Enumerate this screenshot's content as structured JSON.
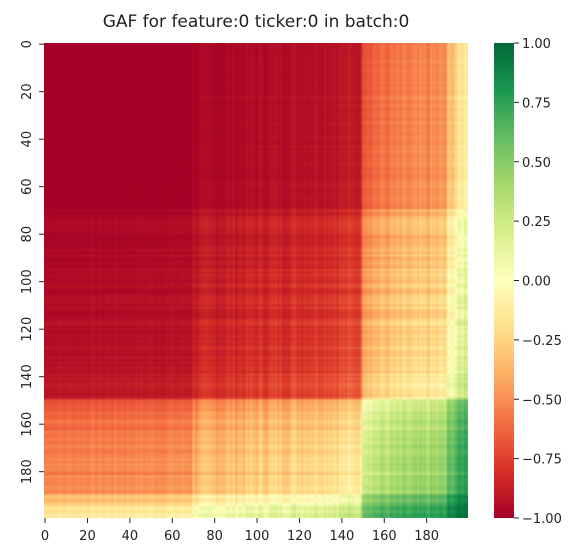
{
  "chart_data": {
    "type": "heatmap",
    "title": "GAF for feature:0 ticker:0 in batch:0",
    "xlabel": "",
    "ylabel": "",
    "size": 200,
    "x_ticks": [
      0,
      20,
      40,
      60,
      80,
      100,
      120,
      140,
      160,
      180
    ],
    "y_ticks": [
      0,
      20,
      40,
      60,
      80,
      100,
      120,
      140,
      160,
      180
    ],
    "colormap": "RdYlGn",
    "vmin": -1.0,
    "vmax": 1.0,
    "colorbar_ticks": [
      "1.00",
      "0.75",
      "0.50",
      "0.25",
      "0.00",
      "−0.25",
      "−0.50",
      "−0.75",
      "−1.00"
    ],
    "colorbar_tick_values": [
      1.0,
      0.75,
      0.5,
      0.25,
      0.0,
      -0.25,
      -0.5,
      -0.75,
      -1.0
    ],
    "colors": {
      "low": "#a50026",
      "mid": "#ffffbf",
      "high": "#006837"
    },
    "cell_pattern": "symmetric Gramian angular field: each cell encodes cos of the sum of the angles of two samples of one series; the series starts near its minimum, rises through the middle region, and reaches its maximum near sample 150 and again near 190-199"
  }
}
